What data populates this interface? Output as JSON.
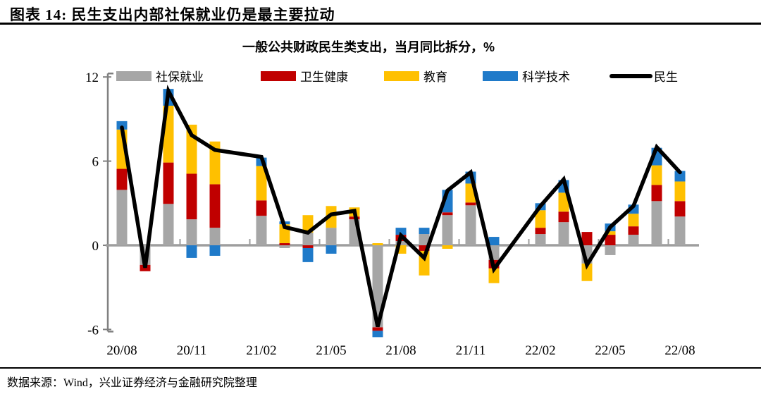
{
  "header": {
    "title": "图表 14: 民生支出内部社保就业仍是最主要拉动"
  },
  "chart": {
    "subtitle": "一般公共财政民生类支出，当月同比拆分，%"
  },
  "footer": {
    "source": "数据来源：Wind，兴业证券经济与金融研究院整理"
  },
  "colors": {
    "gray": "#A6A6A6",
    "red": "#C00000",
    "yellow": "#FFC000",
    "blue": "#1F7AC9",
    "line": "#000000",
    "axis": "#808080",
    "zero_line": "#9E9E9E"
  },
  "chart_data": {
    "type": "bar",
    "subtype": "stacked-bars-with-line",
    "title": "一般公共财政民生类支出，当月同比拆分，%",
    "ylim": [
      -6,
      12
    ],
    "yticks": [
      12,
      6,
      0,
      -6
    ],
    "grid": false,
    "legend_position": "top",
    "x_labels_shown": [
      "20/08",
      "20/11",
      "21/02",
      "21/05",
      "21/08",
      "21/11",
      "22/02",
      "22/05",
      "22/08"
    ],
    "categories": [
      "20/08",
      "20/09",
      "20/10",
      "20/11",
      "20/12",
      "21/02",
      "21/03",
      "21/04",
      "21/05",
      "21/06",
      "21/07",
      "21/08",
      "21/09",
      "21/10",
      "21/11",
      "21/12",
      "22/02",
      "22/03",
      "22/04",
      "22/05",
      "22/06",
      "22/07",
      "22/08"
    ],
    "series": [
      {
        "name": "社保就业",
        "color": "#A6A6A6",
        "values": [
          3.95,
          -1.4,
          2.95,
          1.85,
          1.25,
          2.1,
          -0.2,
          0.9,
          1.25,
          1.85,
          -5.85,
          0.3,
          0.8,
          2.15,
          2.85,
          -1.05,
          0.8,
          1.65,
          -1.3,
          -0.7,
          0.75,
          3.15,
          2.05
        ]
      },
      {
        "name": "卫生健康",
        "color": "#C00000",
        "values": [
          1.5,
          -0.45,
          2.95,
          3.25,
          3.1,
          1.1,
          0.15,
          -0.2,
          0,
          0.2,
          -0.25,
          0.45,
          -0.4,
          0.2,
          0.2,
          -0.6,
          0.45,
          0.75,
          0.95,
          0.75,
          0.6,
          1.15,
          1.1
        ]
      },
      {
        "name": "教育",
        "color": "#FFC000",
        "values": [
          2.8,
          0,
          4.05,
          3.5,
          3.05,
          2.45,
          1.35,
          1.25,
          1.55,
          0.65,
          0.15,
          -0.6,
          -1.75,
          -0.25,
          1.35,
          -1.05,
          1.25,
          1.35,
          -1.25,
          0.25,
          0.9,
          1.4,
          1.4
        ]
      },
      {
        "name": "科学技术",
        "color": "#1F7AC9",
        "values": [
          0.6,
          0,
          1.2,
          -0.9,
          -0.75,
          0.6,
          0.2,
          -1.0,
          -0.6,
          0,
          -0.45,
          0.5,
          0.45,
          1.6,
          0.85,
          0.6,
          0.5,
          0.9,
          0,
          0.55,
          0.65,
          1.25,
          0.75
        ]
      }
    ],
    "line": {
      "name": "民生",
      "color": "#000000",
      "values": [
        8.4,
        -1.6,
        11.0,
        7.85,
        6.8,
        6.3,
        1.3,
        0.9,
        2.2,
        2.45,
        -5.8,
        0.7,
        -0.9,
        3.9,
        5.2,
        -1.7,
        2.8,
        4.7,
        -1.4,
        1.3,
        2.8,
        7.0,
        5.2
      ]
    }
  }
}
